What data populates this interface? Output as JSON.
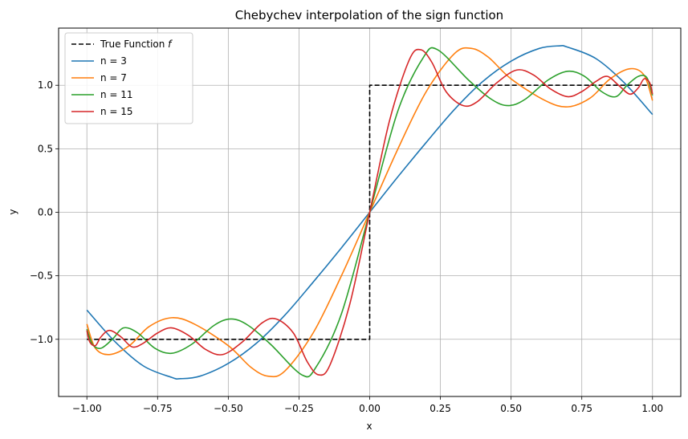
{
  "chart_data": {
    "type": "line",
    "title": "Chebychev interpolation of the sign function",
    "xlabel": "x",
    "ylabel": "y",
    "xlim": [
      -1.1,
      1.1
    ],
    "ylim": [
      -1.45,
      1.45
    ],
    "grid": true,
    "legend_position": "top-left",
    "x_ticks": [
      -1.0,
      -0.75,
      -0.5,
      -0.25,
      0.0,
      0.25,
      0.5,
      0.75,
      1.0
    ],
    "x_tick_labels": [
      "−1.00",
      "−0.75",
      "−0.50",
      "−0.25",
      "0.00",
      "0.25",
      "0.50",
      "0.75",
      "1.00"
    ],
    "y_ticks": [
      -1.0,
      -0.5,
      0.0,
      0.5,
      1.0
    ],
    "y_tick_labels": [
      "−1.0",
      "−0.5",
      "0.0",
      "0.5",
      "1.0"
    ],
    "series": [
      {
        "name": "True Function f",
        "color": "#000000",
        "dashed": true,
        "points": [
          [
            -1.0,
            -1.0
          ],
          [
            0.0,
            -1.0
          ],
          [
            0.0,
            1.0
          ],
          [
            1.0,
            1.0
          ]
        ]
      },
      {
        "name": "n = 3",
        "color": "#1f77b4",
        "points": [
          [
            -1.0,
            -0.77
          ],
          [
            -0.9,
            -1.02
          ],
          [
            -0.8,
            -1.21
          ],
          [
            -0.7,
            -1.3
          ],
          [
            -0.67,
            -1.31
          ],
          [
            -0.6,
            -1.29
          ],
          [
            -0.5,
            -1.19
          ],
          [
            -0.4,
            -1.03
          ],
          [
            -0.3,
            -0.81
          ],
          [
            -0.2,
            -0.55
          ],
          [
            -0.1,
            -0.28
          ],
          [
            0.0,
            0.0
          ],
          [
            0.1,
            0.28
          ],
          [
            0.2,
            0.55
          ],
          [
            0.3,
            0.81
          ],
          [
            0.4,
            1.03
          ],
          [
            0.5,
            1.19
          ],
          [
            0.6,
            1.29
          ],
          [
            0.67,
            1.31
          ],
          [
            0.7,
            1.3
          ],
          [
            0.8,
            1.21
          ],
          [
            0.9,
            1.02
          ],
          [
            1.0,
            0.77
          ]
        ]
      },
      {
        "name": "n = 7",
        "color": "#ff7f0e",
        "points": [
          [
            -1.0,
            -0.88
          ],
          [
            -0.97,
            -1.07
          ],
          [
            -0.92,
            -1.12
          ],
          [
            -0.85,
            -1.05
          ],
          [
            -0.78,
            -0.9
          ],
          [
            -0.7,
            -0.83
          ],
          [
            -0.62,
            -0.88
          ],
          [
            -0.5,
            -1.05
          ],
          [
            -0.42,
            -1.22
          ],
          [
            -0.36,
            -1.29
          ],
          [
            -0.3,
            -1.25
          ],
          [
            -0.2,
            -0.95
          ],
          [
            -0.1,
            -0.5
          ],
          [
            0.0,
            0.0
          ],
          [
            0.1,
            0.5
          ],
          [
            0.2,
            0.95
          ],
          [
            0.3,
            1.25
          ],
          [
            0.36,
            1.29
          ],
          [
            0.42,
            1.22
          ],
          [
            0.5,
            1.05
          ],
          [
            0.62,
            0.88
          ],
          [
            0.7,
            0.83
          ],
          [
            0.78,
            0.9
          ],
          [
            0.85,
            1.05
          ],
          [
            0.92,
            1.13
          ],
          [
            0.97,
            1.08
          ],
          [
            1.0,
            0.88
          ]
        ]
      },
      {
        "name": "n = 11",
        "color": "#2ca02c",
        "points": [
          [
            -1.0,
            -0.92
          ],
          [
            -0.98,
            -1.04
          ],
          [
            -0.95,
            -1.07
          ],
          [
            -0.91,
            -1.0
          ],
          [
            -0.87,
            -0.91
          ],
          [
            -0.82,
            -0.95
          ],
          [
            -0.76,
            -1.07
          ],
          [
            -0.7,
            -1.11
          ],
          [
            -0.63,
            -1.04
          ],
          [
            -0.55,
            -0.89
          ],
          [
            -0.49,
            -0.84
          ],
          [
            -0.43,
            -0.89
          ],
          [
            -0.35,
            -1.04
          ],
          [
            -0.24,
            -1.28
          ],
          [
            -0.19,
            -1.22
          ],
          [
            -0.1,
            -0.8
          ],
          [
            0.0,
            0.0
          ],
          [
            0.1,
            0.8
          ],
          [
            0.19,
            1.22
          ],
          [
            0.24,
            1.28
          ],
          [
            0.35,
            1.04
          ],
          [
            0.43,
            0.89
          ],
          [
            0.49,
            0.84
          ],
          [
            0.55,
            0.89
          ],
          [
            0.63,
            1.04
          ],
          [
            0.7,
            1.11
          ],
          [
            0.76,
            1.07
          ],
          [
            0.82,
            0.95
          ],
          [
            0.87,
            0.91
          ],
          [
            0.91,
            1.0
          ],
          [
            0.95,
            1.07
          ],
          [
            0.98,
            1.06
          ],
          [
            1.0,
            0.92
          ]
        ]
      },
      {
        "name": "n = 15",
        "color": "#d62728",
        "points": [
          [
            -1.0,
            -0.93
          ],
          [
            -0.99,
            -1.02
          ],
          [
            -0.97,
            -1.05
          ],
          [
            -0.95,
            -0.98
          ],
          [
            -0.92,
            -0.93
          ],
          [
            -0.88,
            -0.98
          ],
          [
            -0.84,
            -1.06
          ],
          [
            -0.8,
            -1.03
          ],
          [
            -0.75,
            -0.95
          ],
          [
            -0.7,
            -0.91
          ],
          [
            -0.64,
            -0.97
          ],
          [
            -0.58,
            -1.08
          ],
          [
            -0.52,
            -1.12
          ],
          [
            -0.45,
            -1.02
          ],
          [
            -0.38,
            -0.87
          ],
          [
            -0.33,
            -0.84
          ],
          [
            -0.27,
            -0.95
          ],
          [
            -0.22,
            -1.18
          ],
          [
            -0.18,
            -1.28
          ],
          [
            -0.14,
            -1.2
          ],
          [
            -0.07,
            -0.72
          ],
          [
            0.0,
            0.0
          ],
          [
            0.07,
            0.72
          ],
          [
            0.14,
            1.2
          ],
          [
            0.18,
            1.28
          ],
          [
            0.22,
            1.18
          ],
          [
            0.27,
            0.95
          ],
          [
            0.33,
            0.84
          ],
          [
            0.38,
            0.87
          ],
          [
            0.45,
            1.02
          ],
          [
            0.52,
            1.12
          ],
          [
            0.58,
            1.08
          ],
          [
            0.64,
            0.97
          ],
          [
            0.7,
            0.91
          ],
          [
            0.75,
            0.95
          ],
          [
            0.8,
            1.03
          ],
          [
            0.84,
            1.07
          ],
          [
            0.88,
            1.0
          ],
          [
            0.92,
            0.93
          ],
          [
            0.95,
            0.98
          ],
          [
            0.97,
            1.05
          ],
          [
            0.99,
            1.02
          ],
          [
            1.0,
            0.93
          ]
        ]
      }
    ]
  }
}
